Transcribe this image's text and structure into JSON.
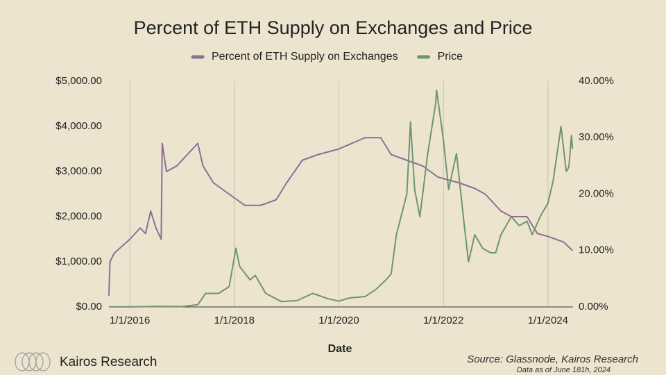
{
  "chart_data": {
    "type": "line",
    "title": "Percent of ETH Supply on Exchanges and Price",
    "x_label": "Date",
    "source": "Source: Glassnode, Kairos Research",
    "note": "Data as of June 181h, 2024",
    "brand": "Kairos Research",
    "xlim": [
      2015.6,
      2024.48
    ],
    "xticks": [
      {
        "value": 2016,
        "label": "1/1/2016"
      },
      {
        "value": 2018,
        "label": "1/1/2018"
      },
      {
        "value": 2020,
        "label": "1/1/2020"
      },
      {
        "value": 2022,
        "label": "1/1/2022"
      },
      {
        "value": 2024,
        "label": "1/1/2024"
      }
    ],
    "ylim": [
      0,
      5000
    ],
    "yticks": [
      {
        "value": 0,
        "label": "$0.00"
      },
      {
        "value": 1000,
        "label": "$1,000.00"
      },
      {
        "value": 2000,
        "label": "$2,000.00"
      },
      {
        "value": 3000,
        "label": "$3,000.00"
      },
      {
        "value": 4000,
        "label": "$4,000.00"
      },
      {
        "value": 5000,
        "label": "$5,000.00"
      }
    ],
    "y2lim": [
      0,
      40
    ],
    "y2ticks": [
      {
        "value": 0,
        "label": "0.00%"
      },
      {
        "value": 10,
        "label": "10.00%"
      },
      {
        "value": 20,
        "label": "20.00%"
      },
      {
        "value": 30,
        "label": "30.00%"
      },
      {
        "value": 40,
        "label": "40.00%"
      }
    ],
    "series": [
      {
        "name": "Percent of ETH Supply on Exchanges",
        "color": "#8e6d96",
        "axis": "y2",
        "x": [
          2015.6,
          2015.62,
          2015.7,
          2016.0,
          2016.2,
          2016.3,
          2016.4,
          2016.5,
          2016.6,
          2016.62,
          2016.7,
          2016.9,
          2017.2,
          2017.3,
          2017.4,
          2017.6,
          2017.9,
          2018.2,
          2018.5,
          2018.8,
          2019.0,
          2019.3,
          2019.6,
          2020.0,
          2020.5,
          2020.8,
          2021.0,
          2021.3,
          2021.6,
          2021.9,
          2022.3,
          2022.6,
          2022.8,
          2023.1,
          2023.3,
          2023.6,
          2023.8,
          2024.0,
          2024.3,
          2024.47
        ],
        "values": [
          2,
          8,
          9.5,
          12,
          14,
          13,
          17,
          14,
          12,
          29,
          24,
          25,
          28,
          29,
          25,
          22,
          20,
          18,
          18,
          19,
          22,
          26,
          27,
          28,
          30,
          30,
          27,
          26,
          25,
          23,
          22,
          21,
          20,
          17,
          16,
          16,
          13,
          12.5,
          11.5,
          10
        ]
      },
      {
        "name": "Price",
        "color": "#6d9470",
        "axis": "y",
        "x": [
          2015.6,
          2016.0,
          2016.5,
          2017.0,
          2017.3,
          2017.45,
          2017.7,
          2017.9,
          2018.03,
          2018.1,
          2018.3,
          2018.4,
          2018.6,
          2018.9,
          2019.2,
          2019.5,
          2019.8,
          2020.0,
          2020.2,
          2020.5,
          2020.7,
          2020.9,
          2021.0,
          2021.1,
          2021.3,
          2021.37,
          2021.45,
          2021.55,
          2021.7,
          2021.85,
          2021.87,
          2022.0,
          2022.1,
          2022.25,
          2022.4,
          2022.48,
          2022.6,
          2022.75,
          2022.9,
          2023.0,
          2023.1,
          2023.3,
          2023.45,
          2023.6,
          2023.7,
          2023.85,
          2024.0,
          2024.1,
          2024.2,
          2024.25,
          2024.35,
          2024.4,
          2024.45,
          2024.47
        ],
        "values": [
          1,
          1,
          12,
          8,
          50,
          300,
          300,
          450,
          1300,
          900,
          600,
          700,
          300,
          120,
          140,
          300,
          180,
          130,
          200,
          230,
          380,
          600,
          730,
          1600,
          2500,
          4100,
          2600,
          2000,
          3400,
          4500,
          4800,
          3700,
          2600,
          3400,
          1800,
          1000,
          1600,
          1300,
          1200,
          1200,
          1600,
          2000,
          1800,
          1900,
          1600,
          2000,
          2300,
          2800,
          3600,
          4000,
          3000,
          3100,
          3800,
          3500
        ]
      }
    ]
  }
}
